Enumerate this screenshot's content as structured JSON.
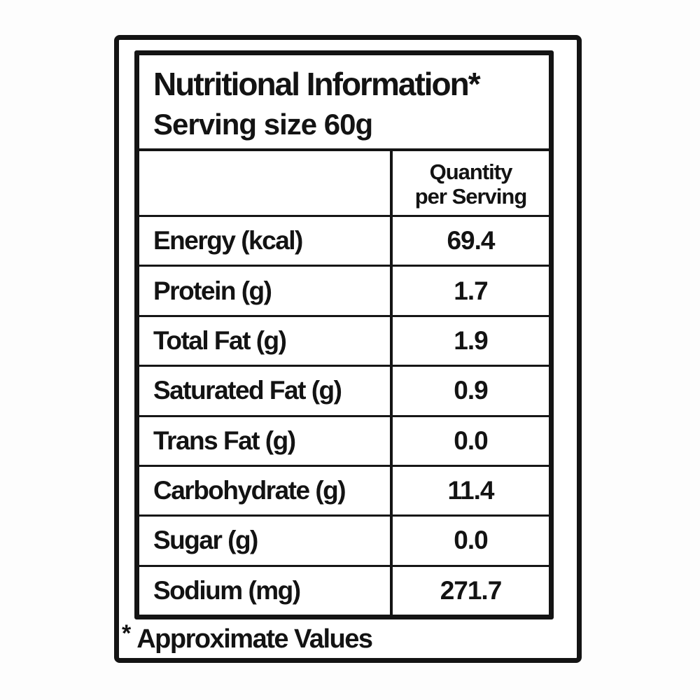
{
  "label": {
    "title": "Nutritional Information*",
    "serving_size": "Serving size 60g",
    "column_header_line1": "Quantity",
    "column_header_line2": "per Serving",
    "footnote_marker": "*",
    "footnote_text": "Approximate Values"
  },
  "chart_data": {
    "type": "table",
    "title": "Nutritional Information*",
    "subtitle": "Serving size 60g",
    "columns": [
      "",
      "Quantity per Serving"
    ],
    "rows": [
      {
        "label": "Energy (kcal)",
        "value": "69.4"
      },
      {
        "label": "Protein (g)",
        "value": "1.7"
      },
      {
        "label": "Total Fat (g)",
        "value": "1.9"
      },
      {
        "label": "Saturated Fat (g)",
        "value": "0.9"
      },
      {
        "label": "Trans Fat (g)",
        "value": "0.0"
      },
      {
        "label": "Carbohydrate (g)",
        "value": "11.4"
      },
      {
        "label": "Sugar (g)",
        "value": "0.0"
      },
      {
        "label": "Sodium (mg)",
        "value": "271.7"
      }
    ],
    "footnote": "* Approximate Values"
  },
  "colors": {
    "border": "#141414",
    "text": "#131313",
    "background": "#ffffff"
  }
}
